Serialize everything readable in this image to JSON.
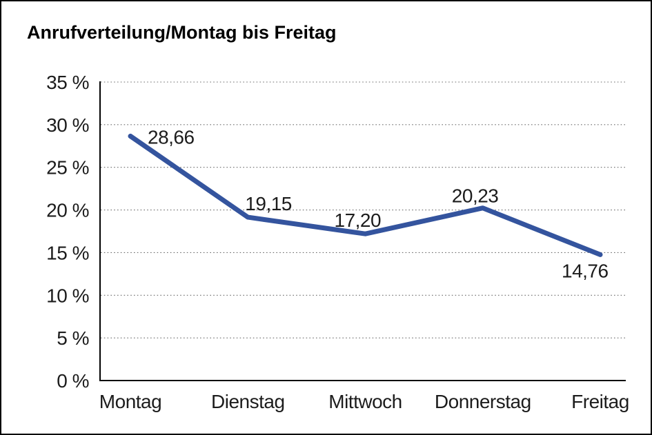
{
  "window": {
    "background_color": "#ffffff",
    "border_color": "#000000"
  },
  "chart_data": {
    "type": "line",
    "title": "Anrufverteilung/Montag bis Freitag",
    "categories": [
      "Montag",
      "Dienstag",
      "Mittwoch",
      "Donnerstag",
      "Freitag"
    ],
    "series": [
      {
        "name": "Anrufverteilung",
        "values": [
          28.66,
          19.15,
          17.2,
          20.23,
          14.76
        ],
        "point_labels": [
          "28,66",
          "19,15",
          "17,20",
          "20,23",
          "14,76"
        ]
      }
    ],
    "xlabel": "",
    "ylabel": "",
    "ylim": [
      0,
      35
    ],
    "y_tick_step": 5,
    "y_tick_labels": [
      "35 %",
      "30 %",
      "25 %",
      "20 %",
      "15 %",
      "10 %",
      "5 %",
      "0 %"
    ],
    "grid": "horizontal-dotted",
    "legend_position": "none",
    "colors": {
      "line": "#34549E",
      "axis": "#000000",
      "gridline": "#6b6b6b",
      "text": "#1c1c1c"
    }
  }
}
